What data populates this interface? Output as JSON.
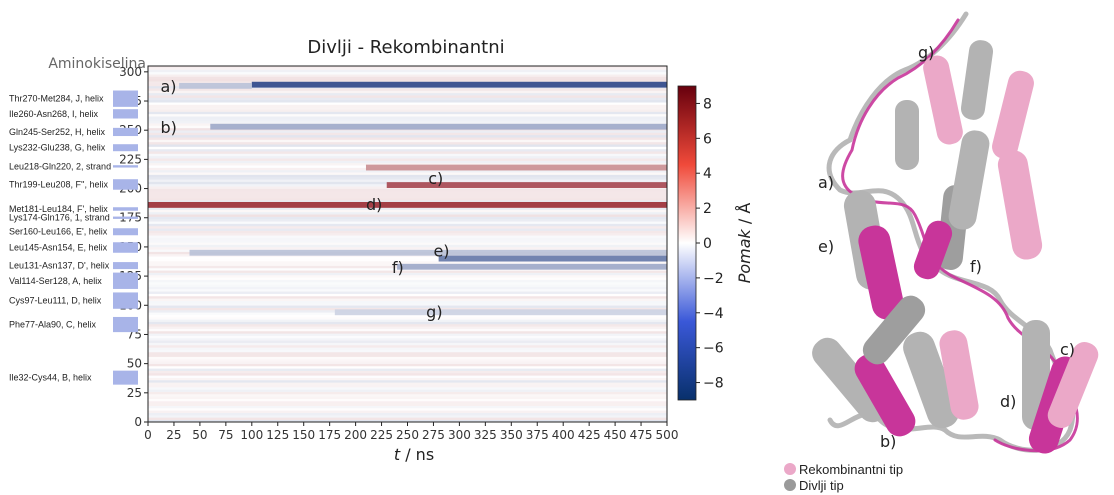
{
  "chart_data": {
    "type": "heatmap",
    "title": "Divlji - Rekombinantni",
    "xlabel_italic": "t",
    "xlabel_unit": " / ns",
    "ylabel": "Aminokiselina",
    "xlim": [
      0,
      500
    ],
    "ylim": [
      0,
      305
    ],
    "x_ticks": [
      0,
      25,
      50,
      75,
      100,
      125,
      150,
      175,
      200,
      225,
      250,
      275,
      300,
      325,
      350,
      375,
      400,
      425,
      450,
      475,
      500
    ],
    "y_ticks": [
      0,
      25,
      50,
      75,
      100,
      125,
      150,
      175,
      200,
      225,
      250,
      275,
      300
    ],
    "colorbar": {
      "label_italic": "Pomak",
      "label_unit": " / Å",
      "range": [
        -9,
        9
      ],
      "ticks": [
        -8,
        -6,
        -4,
        -2,
        0,
        2,
        4,
        6,
        8
      ],
      "tick_labels": [
        "−8",
        "−6",
        "−4",
        "−2",
        "0",
        "2",
        "4",
        "6",
        "8"
      ]
    },
    "bands": [
      {
        "y": 289,
        "t_start": 100,
        "t_end": 500,
        "value": -7.5
      },
      {
        "y": 288,
        "t_start": 30,
        "t_end": 100,
        "value": -2.5
      },
      {
        "y": 253,
        "t_start": 60,
        "t_end": 500,
        "value": -3.5
      },
      {
        "y": 218,
        "t_start": 210,
        "t_end": 500,
        "value": 4
      },
      {
        "y": 203,
        "t_start": 230,
        "t_end": 500,
        "value": 6.5
      },
      {
        "y": 186,
        "t_start": 0,
        "t_end": 500,
        "value": 7.5
      },
      {
        "y": 145,
        "t_start": 40,
        "t_end": 500,
        "value": -2.5
      },
      {
        "y": 140,
        "t_start": 280,
        "t_end": 500,
        "value": -5.5
      },
      {
        "y": 133,
        "t_start": 240,
        "t_end": 500,
        "value": -3.5
      },
      {
        "y": 94,
        "t_start": 180,
        "t_end": 500,
        "value": -1.8
      }
    ],
    "annotations": [
      {
        "label": "a)",
        "x": 12,
        "y": 287
      },
      {
        "label": "b)",
        "x": 12,
        "y": 252
      },
      {
        "label": "c)",
        "x": 270,
        "y": 208
      },
      {
        "label": "d)",
        "x": 210,
        "y": 186
      },
      {
        "label": "e)",
        "x": 275,
        "y": 146
      },
      {
        "label": "f)",
        "x": 235,
        "y": 132
      },
      {
        "label": "g)",
        "x": 268,
        "y": 94
      }
    ],
    "segments": [
      {
        "label": "Thr270-Met284, J, helix",
        "start": 270,
        "end": 284
      },
      {
        "label": "Ile260-Asn268, I, helix",
        "start": 260,
        "end": 268
      },
      {
        "label": "Gln245-Ser252, H, helix",
        "start": 245,
        "end": 252
      },
      {
        "label": "Lys232-Glu238, G, helix",
        "start": 232,
        "end": 238
      },
      {
        "label": "Leu218-Gln220, 2, strand",
        "start": 218,
        "end": 220
      },
      {
        "label": "Thr199-Leu208, F'', helix",
        "start": 199,
        "end": 208
      },
      {
        "label": "Met181-Leu184, F', helix",
        "start": 181,
        "end": 184
      },
      {
        "label": "Lys174-Gln176, 1, strand",
        "start": 174,
        "end": 176
      },
      {
        "label": "Ser160-Leu166, E', helix",
        "start": 160,
        "end": 166
      },
      {
        "label": "Leu145-Asn154, E, helix",
        "start": 145,
        "end": 154
      },
      {
        "label": "Leu131-Asn137, D', helix",
        "start": 131,
        "end": 137
      },
      {
        "label": "Val114-Ser128, A, helix",
        "start": 114,
        "end": 128
      },
      {
        "label": "Cys97-Leu111, D, helix",
        "start": 97,
        "end": 111
      },
      {
        "label": "Phe77-Ala90, C, helix",
        "start": 77,
        "end": 90
      },
      {
        "label": "Ile32-Cys44, B, helix",
        "start": 32,
        "end": 44
      }
    ]
  },
  "structure": {
    "labels": [
      "g)",
      "a)",
      "e)",
      "f)",
      "c)",
      "d)",
      "b)"
    ],
    "legend": [
      {
        "label": "Rekombinantni tip",
        "color": "#eba8c8"
      },
      {
        "label": "Divlji tip",
        "color": "#9a9a9a"
      }
    ],
    "colors": {
      "recombinant": "#eba8c8",
      "wild": "#b0b0b0",
      "highlight": "#c8359a"
    }
  }
}
